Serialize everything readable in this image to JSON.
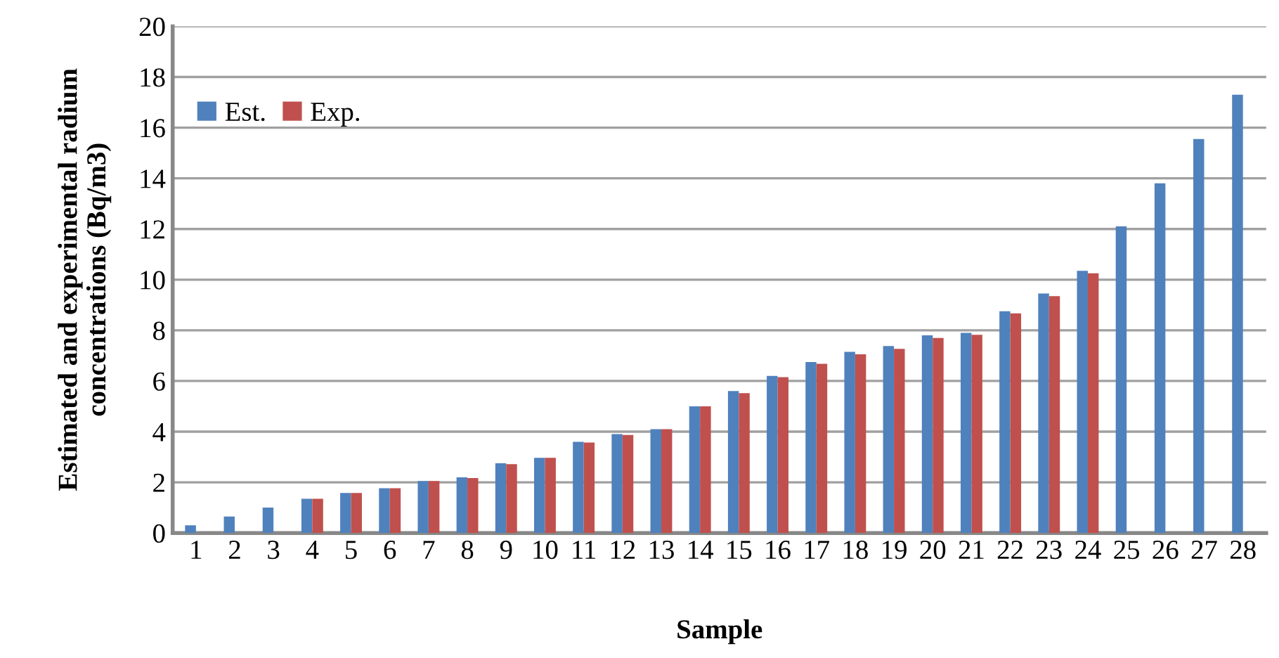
{
  "chart_data": {
    "type": "bar",
    "xlabel": "Sample",
    "ylabel": "Estimated and experimental radium concentrations (Bq/m3)",
    "categories": [
      "1",
      "2",
      "3",
      "4",
      "5",
      "6",
      "7",
      "8",
      "9",
      "10",
      "11",
      "12",
      "13",
      "14",
      "15",
      "16",
      "17",
      "18",
      "19",
      "20",
      "21",
      "22",
      "23",
      "24",
      "25",
      "26",
      "27",
      "28"
    ],
    "series": [
      {
        "name": "Est.",
        "color": "#4f81bd",
        "values": [
          0.3,
          0.65,
          1.0,
          1.35,
          1.58,
          1.77,
          2.05,
          2.2,
          2.75,
          2.97,
          3.6,
          3.9,
          4.1,
          5.0,
          5.6,
          6.2,
          6.75,
          7.15,
          7.38,
          7.8,
          7.9,
          8.75,
          9.45,
          10.35,
          12.1,
          13.8,
          15.55,
          17.3
        ]
      },
      {
        "name": "Exp.",
        "color": "#c0504d",
        "values": [
          null,
          null,
          null,
          1.35,
          1.58,
          1.77,
          2.05,
          2.17,
          2.72,
          2.97,
          3.57,
          3.87,
          4.1,
          5.0,
          5.52,
          6.15,
          6.68,
          7.05,
          7.27,
          7.7,
          7.82,
          8.67,
          9.35,
          10.25,
          null,
          null,
          null,
          null
        ]
      }
    ],
    "ylim": [
      0,
      20
    ],
    "yticks": [
      0,
      2,
      4,
      6,
      8,
      10,
      12,
      14,
      16,
      18,
      20
    ],
    "grid": "y",
    "legend": "top left"
  }
}
